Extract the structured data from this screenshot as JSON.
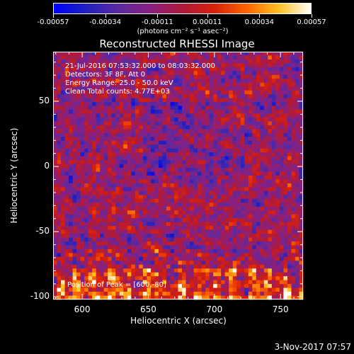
{
  "colorbar": {
    "tick_labels": [
      "-0.00057",
      "-0.00034",
      "-0.00011",
      "0.00011",
      "0.00034",
      "0.00057"
    ],
    "tick_values": [
      -0.00057,
      -0.00034,
      -0.00011,
      0.00011,
      0.00034,
      0.00057
    ],
    "range": [
      -0.00057,
      0.00057
    ],
    "unit_label": "(photons cm⁻² s⁻¹ asec⁻²)",
    "colormap": [
      "#0000ff",
      "#2020c0",
      "#5a2aa0",
      "#8a2080",
      "#b01a3a",
      "#d8200a",
      "#ff6400",
      "#ffc020",
      "#ffffff"
    ]
  },
  "chart_data": {
    "type": "heatmap",
    "title": "Reconstructed RHESSI Image",
    "xlabel": "Heliocentric X (arcsec)",
    "ylabel": "Heliocentric Y (arcsec)",
    "xlim": [
      578,
      767
    ],
    "ylim": [
      -102,
      88
    ],
    "xticks": [
      600,
      650,
      700,
      750
    ],
    "yticks": [
      -100,
      -50,
      0,
      50
    ],
    "xtick_labels": [
      "600",
      "650",
      "700",
      "750"
    ],
    "ytick_labels": [
      "-100",
      "-50",
      "0",
      "50"
    ],
    "info_lines": [
      "21-Jul-2016 07:53:32.000 to 08:03:32.000",
      "Detectors: 3F 8F, Att 0",
      "Energy Range: 25.0 - 50.0 keV",
      "Clean     Total counts: 4.77E+03"
    ],
    "peak_text": "Position of Peak = [600,-80]",
    "peak_position": [
      600,
      -80
    ],
    "date_stamp": "3-Nov-2017 07:57"
  }
}
